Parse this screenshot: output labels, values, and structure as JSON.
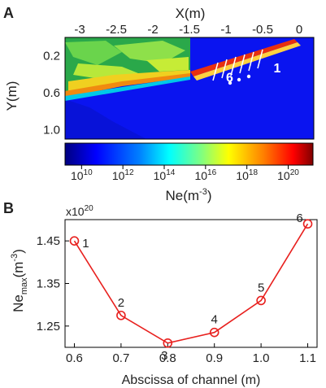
{
  "panels": {
    "a": {
      "letter": "A"
    },
    "b": {
      "letter": "B"
    }
  },
  "colors": {
    "curve": "#e8201e",
    "colormap": [
      "#00007f",
      "#0000ff",
      "#0080ff",
      "#00ffff",
      "#80ff80",
      "#ffff00",
      "#ff8000",
      "#ff0000",
      "#7f0000"
    ]
  },
  "chart_data": [
    {
      "type": "heatmap",
      "title": "",
      "xlabel": "X(m)",
      "ylabel": "Y(m)",
      "x_ticks": [
        "-3",
        "-2.5",
        "-2",
        "-1.5",
        "-1",
        "-0.5",
        "0"
      ],
      "x_tick_values": [
        -3,
        -2.5,
        -2,
        -1.5,
        -1,
        -0.5,
        0
      ],
      "y_ticks": [
        "0.2",
        "0.6",
        "1.0"
      ],
      "y_tick_values": [
        0.2,
        0.6,
        1.0
      ],
      "xlim": [
        -3.2,
        0.2
      ],
      "ylim": [
        0.0,
        1.1
      ],
      "colorbar": {
        "label": "Ne(m",
        "label_sup": "-3",
        "label_end": ")",
        "tick_base": "10",
        "tick_exps": [
          "10",
          "12",
          "14",
          "16",
          "18",
          "20"
        ],
        "exp_values": [
          10,
          12,
          14,
          16,
          18,
          20
        ],
        "range": [
          9.2,
          21.2
        ],
        "scale": "log"
      },
      "annotations": [
        {
          "text": "6",
          "x": -0.95,
          "y": 0.48
        },
        {
          "text": "1",
          "x": -0.3,
          "y": 0.38
        }
      ]
    },
    {
      "type": "line",
      "title": "",
      "xlabel": "Abscissa of channel (m)",
      "ylabel": "Ne",
      "ylabel_sub": "max",
      "ylabel_unit_start": "(m",
      "ylabel_unit_sup": "-3",
      "ylabel_unit_end": ")",
      "y_multiplier": "x10",
      "y_multiplier_exp": "20",
      "x": [
        0.6,
        0.7,
        0.8,
        0.9,
        1.0,
        1.1
      ],
      "series": [
        {
          "values": [
            1.45,
            1.275,
            1.21,
            1.235,
            1.31,
            1.49
          ]
        }
      ],
      "point_labels": [
        "1",
        "2",
        "3",
        "4",
        "5",
        "6"
      ],
      "x_ticks": [
        "0.6",
        "0.7",
        "0.8",
        "0.9",
        "1.0",
        "1.1"
      ],
      "y_ticks": [
        "1.25",
        "1.35",
        "1.45"
      ],
      "y_tick_values": [
        1.25,
        1.35,
        1.45
      ],
      "xlim": [
        0.58,
        1.12
      ],
      "ylim": [
        1.2,
        1.5
      ],
      "grid": false
    }
  ]
}
